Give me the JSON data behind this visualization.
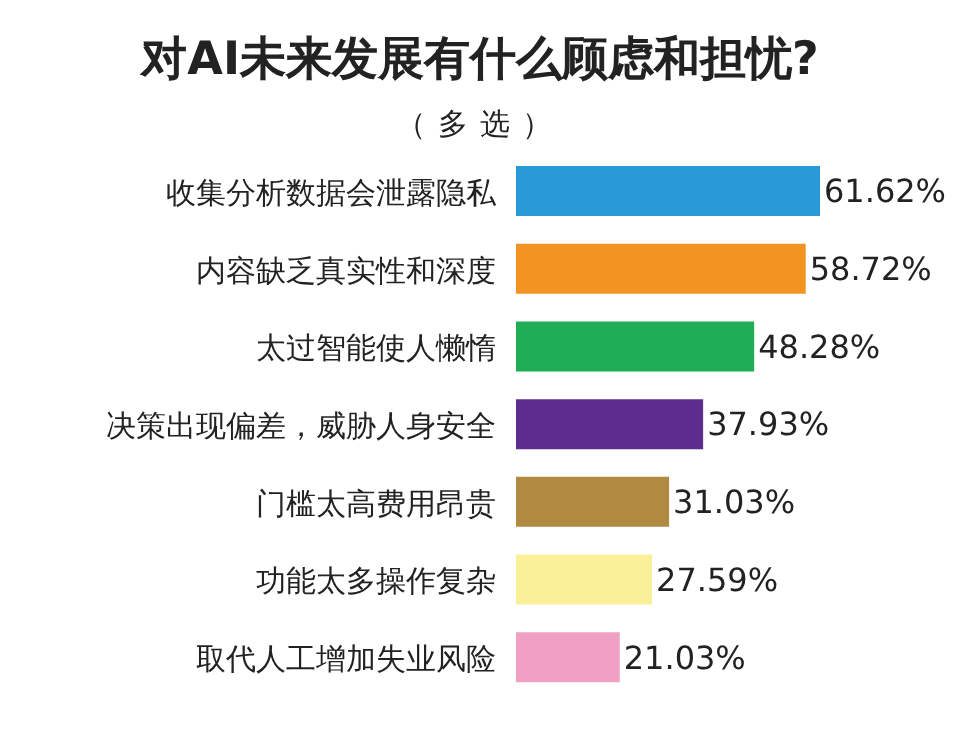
{
  "chart_data": {
    "type": "bar",
    "orientation": "horizontal",
    "title": "对AI未来发展有什么顾虑和担忧?",
    "subtitle": "（多选）",
    "categories": [
      "收集分析数据会泄露隐私",
      "内容缺乏真实性和深度",
      "太过智能使人懒惰",
      "决策出现偏差，威胁人身安全",
      "门槛太高费用昂贵",
      "功能太多操作复杂",
      "取代人工增加失业风险"
    ],
    "values": [
      61.62,
      58.72,
      48.28,
      37.93,
      31.03,
      27.59,
      21.03
    ],
    "value_labels": [
      "61.62%",
      "58.72%",
      "48.28%",
      "37.93%",
      "31.03%",
      "27.59%",
      "21.03%"
    ],
    "colors": [
      "#2a9ad6",
      "#f39322",
      "#1fae55",
      "#5c2d8e",
      "#b08a40",
      "#fbf09a",
      "#f1a0c4"
    ]
  }
}
